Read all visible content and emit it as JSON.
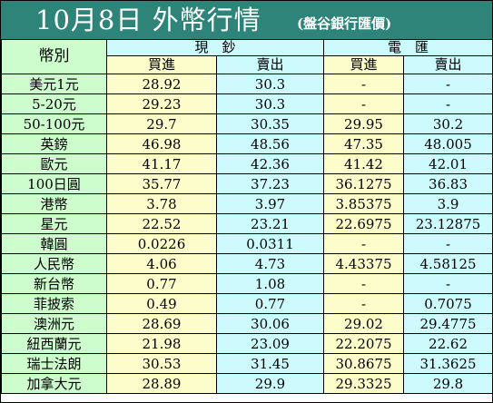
{
  "title": "10月8日 外幣行情",
  "subtitle": "(盤谷銀行匯價)",
  "headers": {
    "currency": "幣別",
    "cash": "現　鈔",
    "telegraphic": "電　匯",
    "buy": "買進",
    "sell": "賣出"
  },
  "rows": [
    {
      "currency": "美元1元",
      "cash_buy": "28.92",
      "cash_sell": "30.3",
      "tt_buy": "-",
      "tt_sell": "-"
    },
    {
      "currency": "5-20元",
      "cash_buy": "29.23",
      "cash_sell": "30.3",
      "tt_buy": "-",
      "tt_sell": "-"
    },
    {
      "currency": "50-100元",
      "cash_buy": "29.7",
      "cash_sell": "30.35",
      "tt_buy": "29.95",
      "tt_sell": "30.2"
    },
    {
      "currency": "英鎊",
      "cash_buy": "46.98",
      "cash_sell": "48.56",
      "tt_buy": "47.35",
      "tt_sell": "48.005"
    },
    {
      "currency": "歐元",
      "cash_buy": "41.17",
      "cash_sell": "42.36",
      "tt_buy": "41.42",
      "tt_sell": "42.01"
    },
    {
      "currency": "100日圓",
      "cash_buy": "35.77",
      "cash_sell": "37.23",
      "tt_buy": "36.1275",
      "tt_sell": "36.83"
    },
    {
      "currency": "港幣",
      "cash_buy": "3.78",
      "cash_sell": "3.97",
      "tt_buy": "3.85375",
      "tt_sell": "3.9"
    },
    {
      "currency": "星元",
      "cash_buy": "22.52",
      "cash_sell": "23.21",
      "tt_buy": "22.6975",
      "tt_sell": "23.12875"
    },
    {
      "currency": "韓圓",
      "cash_buy": "0.0226",
      "cash_sell": "0.0311",
      "tt_buy": "-",
      "tt_sell": "-"
    },
    {
      "currency": "人民幣",
      "cash_buy": "4.06",
      "cash_sell": "4.73",
      "tt_buy": "4.43375",
      "tt_sell": "4.58125"
    },
    {
      "currency": "新台幣",
      "cash_buy": "0.77",
      "cash_sell": "1.08",
      "tt_buy": "-",
      "tt_sell": "-"
    },
    {
      "currency": "菲披索",
      "cash_buy": "0.49",
      "cash_sell": "0.77",
      "tt_buy": "-",
      "tt_sell": "0.7075"
    },
    {
      "currency": "澳洲元",
      "cash_buy": "28.69",
      "cash_sell": "30.06",
      "tt_buy": "29.02",
      "tt_sell": "29.4775"
    },
    {
      "currency": "紐西蘭元",
      "cash_buy": "21.98",
      "cash_sell": "23.09",
      "tt_buy": "22.2075",
      "tt_sell": "22.62"
    },
    {
      "currency": "瑞士法朗",
      "cash_buy": "30.53",
      "cash_sell": "31.45",
      "tt_buy": "30.8675",
      "tt_sell": "31.3625"
    },
    {
      "currency": "加拿大元",
      "cash_buy": "28.89",
      "cash_sell": "29.9",
      "tt_buy": "29.3325",
      "tt_sell": "29.8"
    }
  ],
  "colors": {
    "title_bar": "#2e8478",
    "currency_col": "#cdfccd",
    "buy_col": "#fdfdcc",
    "sell_col": "#cdfbfd"
  }
}
